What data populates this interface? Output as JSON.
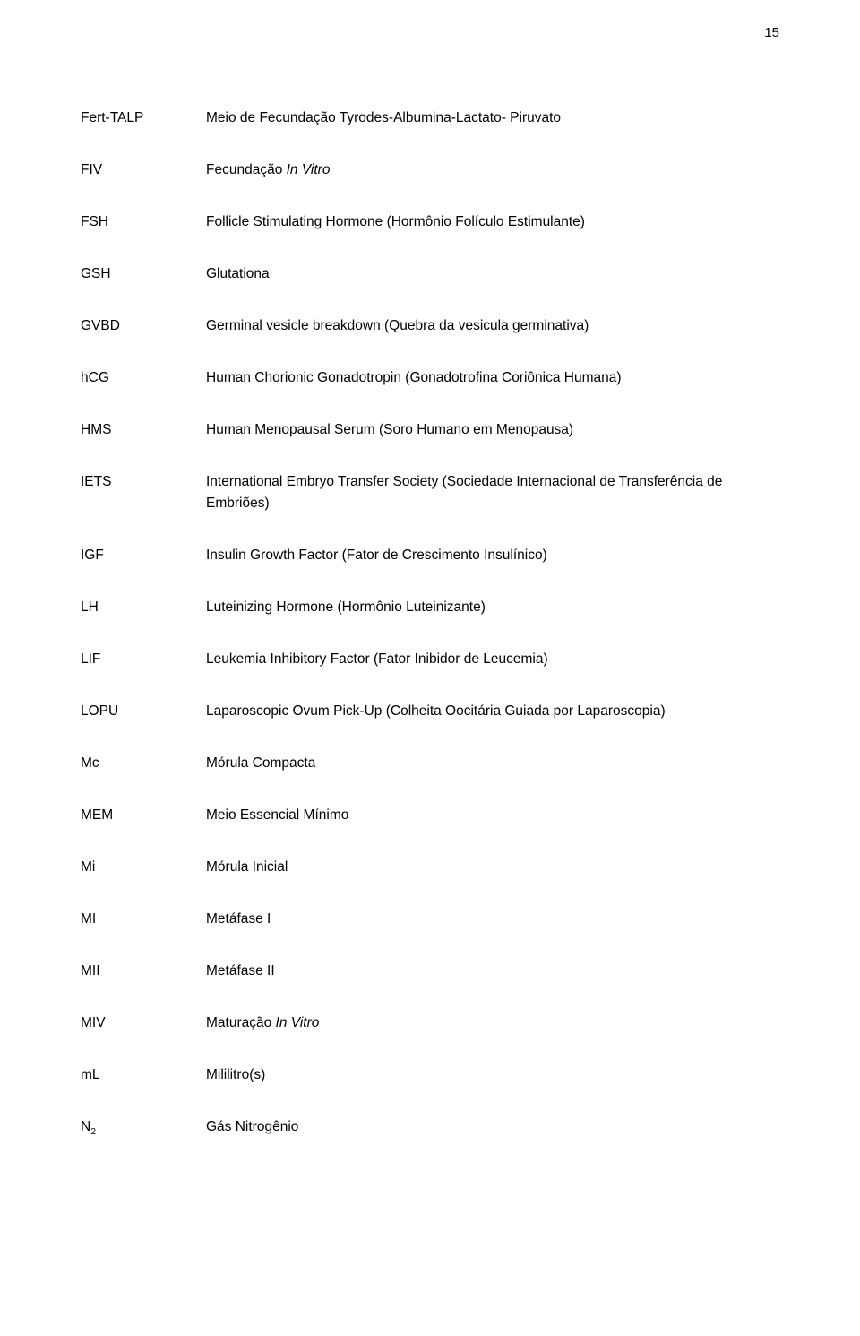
{
  "page_number": "15",
  "entries": [
    {
      "term": "Fert-TALP",
      "definition": "Meio de Fecundação Tyrodes-Albumina-Lactato- Piruvato"
    },
    {
      "term": "FIV",
      "definition_prefix": "Fecundação ",
      "definition_italic": "In Vitro"
    },
    {
      "term": "FSH",
      "definition": "Follicle Stimulating Hormone (Hormônio Folículo Estimulante)"
    },
    {
      "term": "GSH",
      "definition": "Glutationa"
    },
    {
      "term": "GVBD",
      "definition": "Germinal vesicle breakdown (Quebra da vesicula germinativa)"
    },
    {
      "term": "hCG",
      "definition": "Human Chorionic Gonadotropin (Gonadotrofina Coriônica Humana)"
    },
    {
      "term": "HMS",
      "definition": "Human Menopausal Serum (Soro Humano em Menopausa)"
    },
    {
      "term": "IETS",
      "definition": "International Embryo Transfer Society (Sociedade Internacional de Transferência de Embriões)"
    },
    {
      "term": "IGF",
      "definition": "Insulin Growth Factor (Fator de Crescimento Insulínico)"
    },
    {
      "term": "LH",
      "definition": "Luteinizing Hormone (Hormônio Luteinizante)"
    },
    {
      "term": "LIF",
      "definition": "Leukemia Inhibitory Factor (Fator Inibidor de Leucemia)"
    },
    {
      "term": "LOPU",
      "definition": "Laparoscopic Ovum Pick-Up (Colheita Oocitária Guiada por Laparoscopia)"
    },
    {
      "term": "Mc",
      "definition": "Mórula Compacta"
    },
    {
      "term": "MEM",
      "definition": "Meio Essencial Mínimo"
    },
    {
      "term": "Mi",
      "definition": "Mórula Inicial"
    },
    {
      "term": "MI",
      "definition": "Metáfase I"
    },
    {
      "term": "MII",
      "definition": "Metáfase II"
    },
    {
      "term": "MIV",
      "definition_prefix": "Maturação ",
      "definition_italic": "In Vitro"
    },
    {
      "term": "mL",
      "definition": "Mililitro(s)"
    },
    {
      "term_base": "N",
      "term_sub": "2",
      "definition": "Gás Nitrogênio"
    }
  ]
}
